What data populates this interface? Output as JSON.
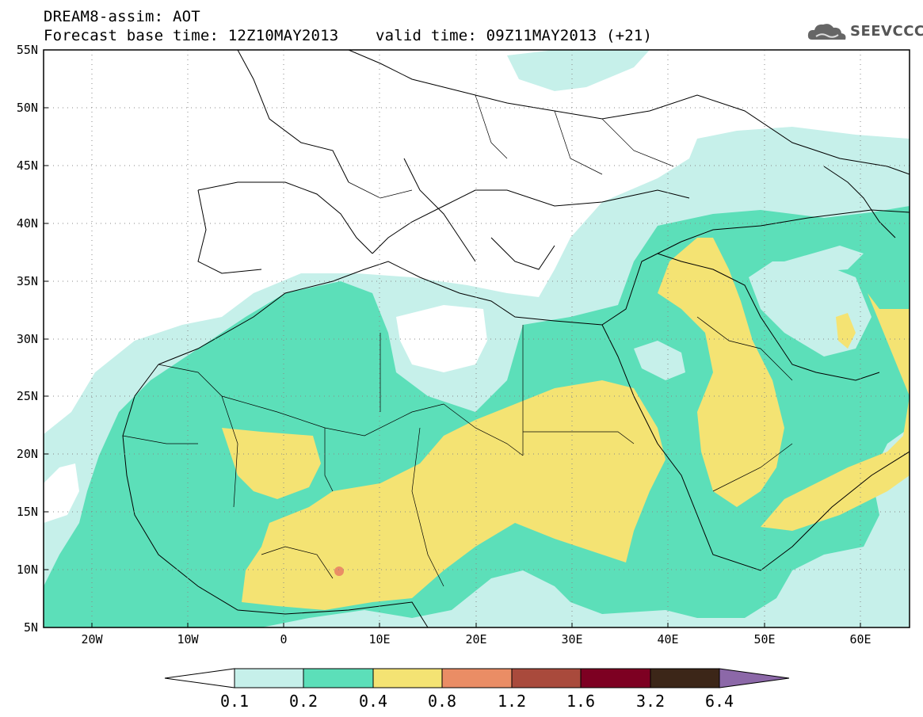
{
  "header": {
    "line1": "DREAM8-assim: AOT",
    "line2": "Forecast base time: 12Z10MAY2013    valid time: 09Z11MAY2013 (+21)"
  },
  "logo": {
    "text": "SEEVCCC",
    "icon": "cloud-logo-icon"
  },
  "axes": {
    "lat_labels": [
      "55N",
      "50N",
      "45N",
      "40N",
      "35N",
      "30N",
      "25N",
      "20N",
      "15N",
      "10N",
      "5N"
    ],
    "lon_labels": [
      "20W",
      "10W",
      "0",
      "10E",
      "20E",
      "30E",
      "40E",
      "50E",
      "60E"
    ],
    "lon_range": [
      -25,
      65
    ],
    "lat_range": [
      5,
      55
    ],
    "grid": "dotted"
  },
  "colorbar": {
    "labels": [
      "0.1",
      "0.2",
      "0.4",
      "0.8",
      "1.2",
      "1.6",
      "3.2",
      "6.4"
    ],
    "colors": [
      "#ffffff",
      "#c6f0ea",
      "#5cdfb9",
      "#f4e373",
      "#ea8d65",
      "#a94a3c",
      "#7d0022",
      "#3c2618",
      "#8c68a8"
    ]
  },
  "legend_colors": {
    "aot_0_1_0_2": "#c6f0ea",
    "aot_0_2_0_4": "#5cdfb9",
    "aot_0_4_0_8": "#f4e373",
    "aot_0_8_1_2": "#ea8d65"
  }
}
